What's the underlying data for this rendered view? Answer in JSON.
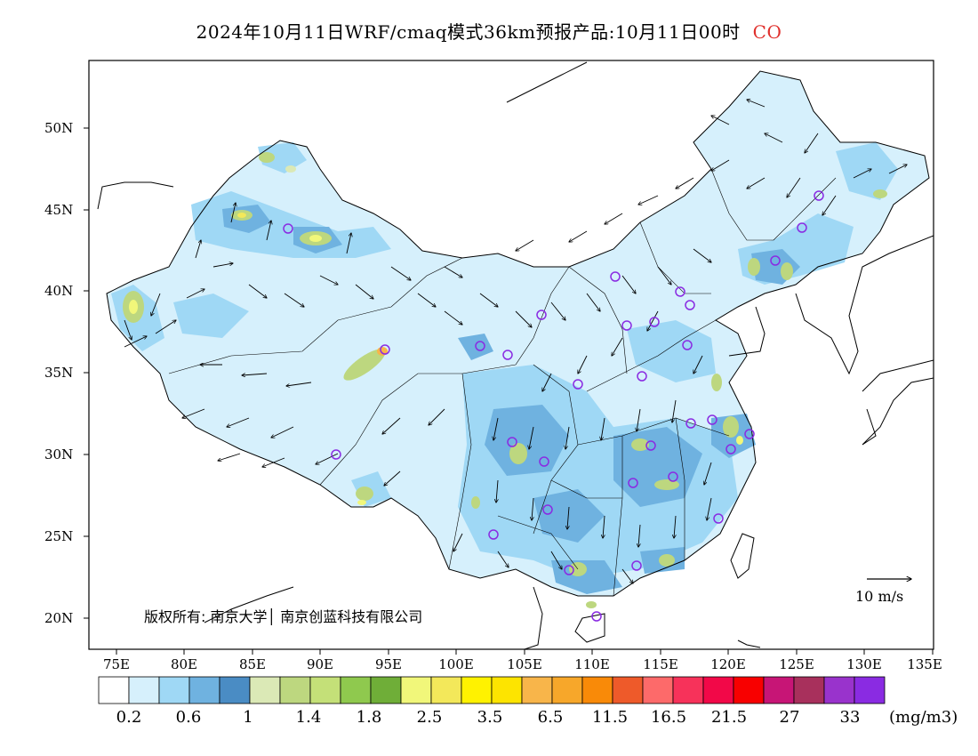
{
  "title": {
    "text": "2024年10月11日WRF/cmaq模式36km预报产品:10月11日00时",
    "species": "CO",
    "species_color": "#e0302c"
  },
  "axes": {
    "lat_labels": [
      "50N",
      "45N",
      "40N",
      "35N",
      "30N",
      "25N",
      "20N"
    ],
    "lat_values": [
      50,
      45,
      40,
      35,
      30,
      25,
      20
    ],
    "lon_labels": [
      "75E",
      "80E",
      "85E",
      "90E",
      "95E",
      "100E",
      "105E",
      "110E",
      "115E",
      "120E",
      "125E",
      "130E",
      "135E"
    ],
    "lon_values": [
      75,
      80,
      85,
      90,
      95,
      100,
      105,
      110,
      115,
      120,
      125,
      130,
      135
    ],
    "lon_range": [
      73,
      135
    ],
    "lat_range": [
      18,
      54
    ]
  },
  "legend": {
    "labels": [
      "0.2",
      "0.6",
      "1",
      "1.4",
      "1.8",
      "2.5",
      "3.5",
      "6.5",
      "11.5",
      "16.5",
      "21.5",
      "27",
      "33"
    ],
    "unit": "(mg/m3)",
    "colors": [
      "#ffffff",
      "#d6f0fc",
      "#9fd8f5",
      "#6fb2e0",
      "#4a8cc4",
      "#dbe9b6",
      "#bdd77f",
      "#c4e078",
      "#8fc94e",
      "#6fae38",
      "#f1f77a",
      "#f3e85a",
      "#fff200",
      "#fde400",
      "#f8b54a",
      "#f7a72a",
      "#f98a08",
      "#ee5a2a",
      "#fd6a6a",
      "#f7325a",
      "#f20848",
      "#f80000",
      "#c71576",
      "#a8305c",
      "#9933cc",
      "#8a2be2"
    ]
  },
  "copyright": "版权所有: 南京大学│ 南京创蓝科技有限公司",
  "wind_reference": "10 m/s",
  "colors": {
    "frame": "#000000",
    "land_base": "#d6f0fc",
    "site_marker": "#8a2be2"
  }
}
